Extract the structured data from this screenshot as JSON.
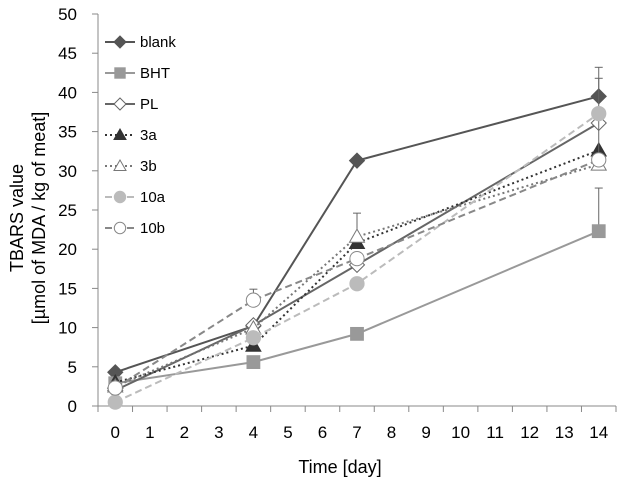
{
  "chart_data": {
    "type": "line",
    "xlabel": "Time [day]",
    "ylabel_lines": [
      "TBARS value",
      "[µmol of MDA / kg of meat]"
    ],
    "xlim": [
      -0.5,
      14.5
    ],
    "ylim": [
      0,
      50
    ],
    "x_ticks": [
      0,
      1,
      2,
      3,
      4,
      5,
      6,
      7,
      8,
      9,
      10,
      11,
      12,
      13,
      14
    ],
    "y_ticks": [
      0,
      5,
      10,
      15,
      20,
      25,
      30,
      35,
      40,
      45,
      50
    ],
    "grid": false,
    "legend": "top-left",
    "x": [
      0,
      4,
      7,
      14
    ],
    "series": [
      {
        "name": "blank",
        "values": [
          4.3,
          10.2,
          31.3,
          39.5
        ],
        "errors": [
          0,
          0,
          0,
          3.7
        ],
        "color": "#555555",
        "dash": "none",
        "marker": "diamond",
        "fill": "#555555"
      },
      {
        "name": "BHT",
        "values": [
          2.9,
          5.6,
          9.2,
          22.3
        ],
        "errors": [
          0,
          0,
          0,
          5.5
        ],
        "color": "#999999",
        "dash": "none",
        "marker": "square",
        "fill": "#999999"
      },
      {
        "name": "PL",
        "values": [
          2.0,
          10.3,
          18.0,
          36.1
        ],
        "errors": [
          0,
          0,
          0,
          0
        ],
        "color": "#666666",
        "dash": "none",
        "marker": "diamond",
        "fill": "#ffffff"
      },
      {
        "name": "3a",
        "values": [
          3.0,
          7.7,
          20.8,
          32.6
        ],
        "errors": [
          0,
          0,
          0,
          0
        ],
        "color": "#333333",
        "dash": "2,3",
        "marker": "triangle",
        "fill": "#333333"
      },
      {
        "name": "3b",
        "values": [
          2.5,
          9.9,
          21.6,
          30.8
        ],
        "errors": [
          0,
          0,
          3.0,
          11.0
        ],
        "color": "#777777",
        "dash": "2,3",
        "marker": "triangle",
        "fill": "#ffffff"
      },
      {
        "name": "10a",
        "values": [
          0.5,
          8.7,
          15.6,
          37.3
        ],
        "errors": [
          0,
          0,
          0,
          0
        ],
        "color": "#bbbbbb",
        "dash": "7,4",
        "marker": "circle",
        "fill": "#bbbbbb"
      },
      {
        "name": "10b",
        "values": [
          2.3,
          13.5,
          18.8,
          31.4
        ],
        "errors": [
          0,
          1.4,
          0,
          0
        ],
        "color": "#888888",
        "dash": "7,4",
        "marker": "circle",
        "fill": "#ffffff"
      }
    ]
  }
}
